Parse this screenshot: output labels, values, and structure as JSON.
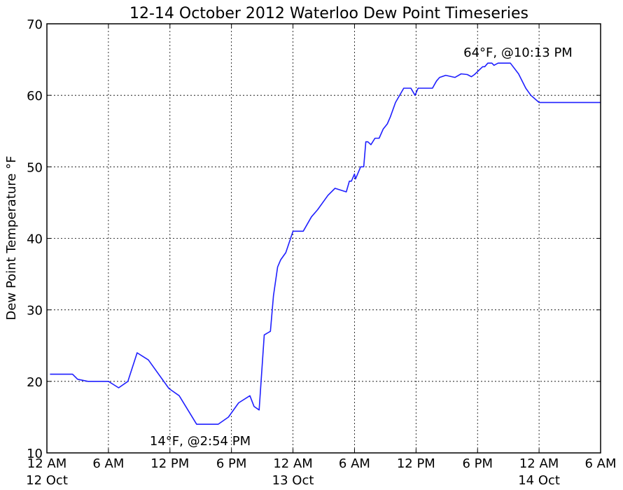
{
  "chart_data": {
    "type": "line",
    "title": "12-14 October 2012 Waterloo Dew Point Timeseries",
    "xlabel": "",
    "ylabel": "Dew Point Temperature °F",
    "ylim": [
      10,
      70
    ],
    "xlim_hours": [
      0,
      54
    ],
    "yticks": [
      10,
      20,
      30,
      40,
      50,
      60,
      70
    ],
    "xticks": [
      {
        "hour": 0,
        "label": "12 AM",
        "date": "12 Oct"
      },
      {
        "hour": 6,
        "label": "6 AM",
        "date": ""
      },
      {
        "hour": 12,
        "label": "12 PM",
        "date": ""
      },
      {
        "hour": 18,
        "label": "6 PM",
        "date": ""
      },
      {
        "hour": 24,
        "label": "12 AM",
        "date": "13 Oct"
      },
      {
        "hour": 30,
        "label": "6 AM",
        "date": ""
      },
      {
        "hour": 36,
        "label": "12 PM",
        "date": ""
      },
      {
        "hour": 42,
        "label": "6 PM",
        "date": ""
      },
      {
        "hour": 48,
        "label": "12 AM",
        "date": "14 Oct"
      },
      {
        "hour": 54,
        "label": "6 AM",
        "date": ""
      }
    ],
    "grid": true,
    "color": "#1f1fff",
    "series": [
      {
        "name": "",
        "x": [
          0.3,
          2.5,
          3.0,
          4.0,
          6.0,
          7.0,
          7.9,
          8.8,
          9.9,
          11.9,
          12.9,
          14.6,
          16.4,
          16.7,
          17.7,
          18.7,
          19.8,
          20.2,
          20.7,
          21.2,
          21.8,
          22.1,
          22.5,
          22.8,
          23.3,
          24.0,
          24.4,
          25.0,
          25.8,
          26.4,
          27.4,
          28.1,
          29.2,
          29.5,
          29.7,
          30.0,
          30.1,
          30.6,
          30.9,
          31.1,
          31.3,
          31.6,
          32.0,
          32.4,
          32.8,
          33.2,
          33.5,
          34.0,
          34.8,
          35.5,
          35.9,
          36.2,
          36.6,
          37.0,
          37.6,
          38.0,
          38.3,
          38.9,
          39.8,
          40.4,
          41.0,
          41.4,
          41.7,
          42.5,
          42.7,
          43.0,
          43.4,
          43.6,
          44.0,
          44.4,
          45.2,
          46.0,
          46.7,
          47.2,
          48.0,
          48.5,
          48.7,
          49.1,
          49.6,
          50.1,
          50.6,
          51.7,
          52.0,
          54.0
        ],
        "y": [
          21,
          21,
          20.3,
          20,
          20,
          19.1,
          20,
          24,
          23,
          19,
          18,
          14,
          14,
          14,
          15,
          17,
          18,
          16.5,
          16,
          26.5,
          27,
          32,
          36,
          37,
          38,
          41,
          41,
          41,
          43,
          44,
          46,
          47,
          46.5,
          48,
          48,
          49,
          48.3,
          50,
          50,
          53.5,
          53.5,
          53.1,
          54,
          54,
          55.3,
          56,
          57,
          59,
          61,
          61,
          60,
          61,
          61,
          61,
          61,
          62,
          62.5,
          62.8,
          62.5,
          63,
          62.9,
          62.6,
          62.9,
          64,
          64,
          64.5,
          64.5,
          64.2,
          64.5,
          64.5,
          64.5,
          63,
          61,
          60,
          59,
          59,
          59,
          59,
          59,
          59,
          59,
          59,
          59,
          59
        ]
      }
    ],
    "annotations": [
      {
        "text": "64°F, @10:13 PM",
        "position": "top-right"
      },
      {
        "text": "14°F, @2:54 PM",
        "position": "bottom-center"
      }
    ]
  }
}
